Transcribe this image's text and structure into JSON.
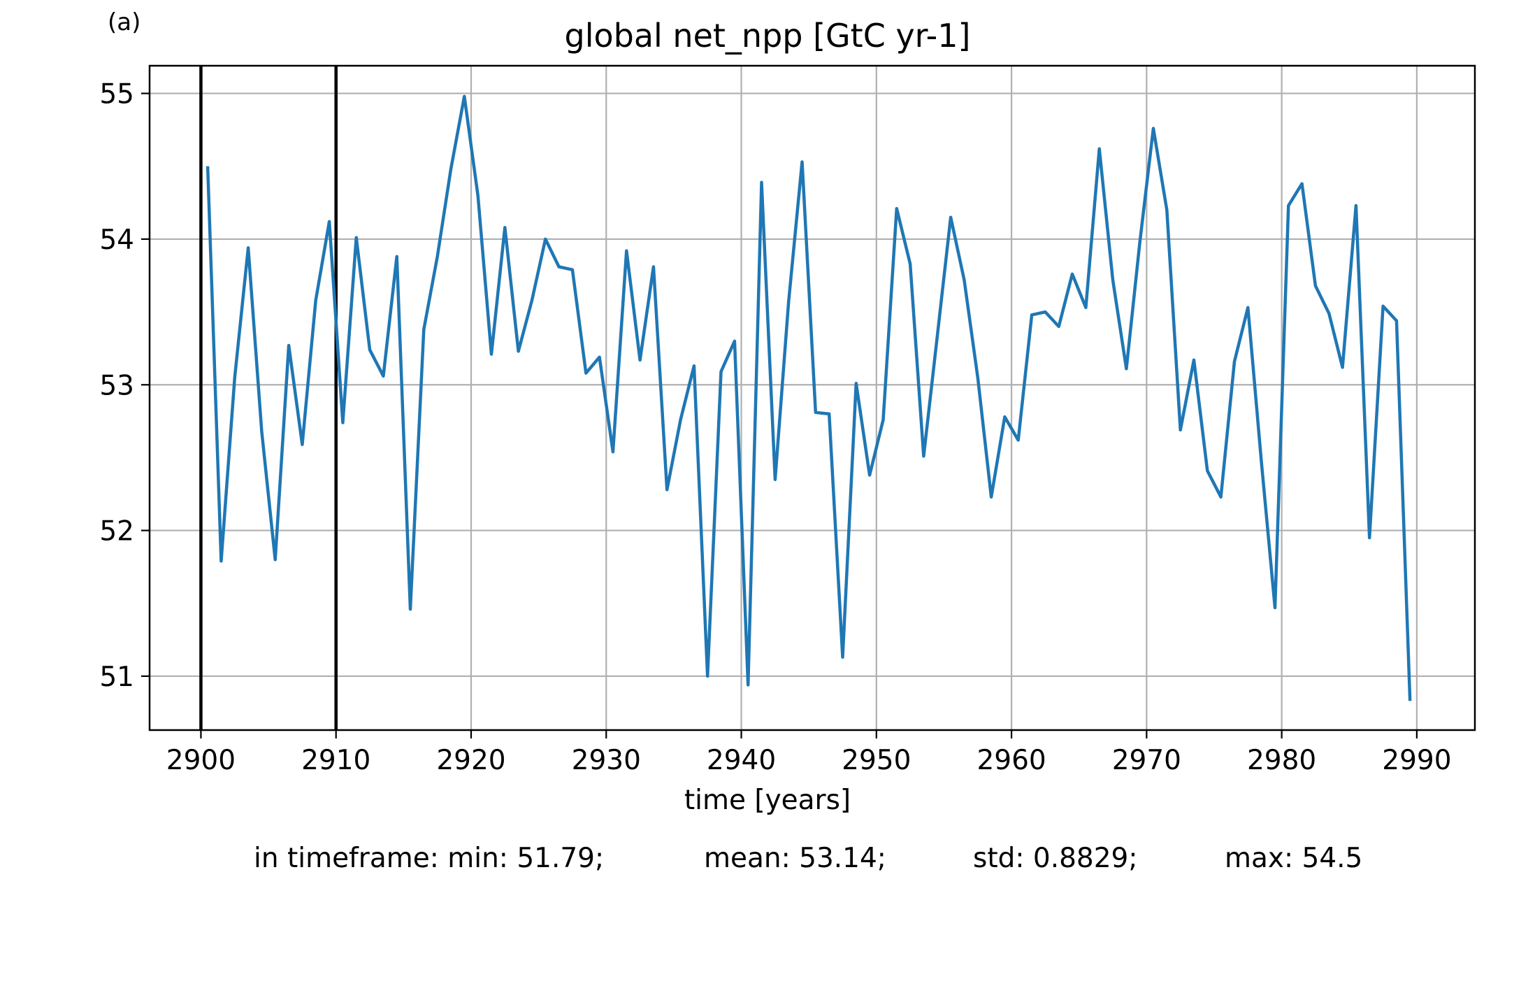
{
  "panel_label": "(a)",
  "stats": {
    "min": "in timeframe: min: 51.79;",
    "mean": "mean: 53.14;",
    "std": "std: 0.8829;",
    "max": "max: 54.5"
  },
  "colors": {
    "series": "#1f77b4",
    "grid": "#b0b0b0",
    "vline": "#000000"
  },
  "chart_data": {
    "type": "line",
    "title": "global net_npp [GtC yr-1]",
    "xlabel": "time [years]",
    "ylabel": "",
    "xlim": [
      2896.2,
      2994.3
    ],
    "ylim": [
      50.63,
      55.19
    ],
    "xticks": [
      2900,
      2910,
      2920,
      2930,
      2940,
      2950,
      2960,
      2970,
      2980,
      2990
    ],
    "yticks": [
      51,
      52,
      53,
      54,
      55
    ],
    "grid": true,
    "vertical_lines": [
      2900,
      2910
    ],
    "series": [
      {
        "x": [
          2900.5,
          2901.5,
          2902.5,
          2903.5,
          2904.5,
          2905.5,
          2906.5,
          2907.5,
          2908.5,
          2909.5,
          2910.5,
          2911.5,
          2912.5,
          2913.5,
          2914.5,
          2915.5,
          2916.5,
          2917.5,
          2918.5,
          2919.5,
          2920.5,
          2921.5,
          2922.5,
          2923.5,
          2924.5,
          2925.5,
          2926.5,
          2927.5,
          2928.5,
          2929.5,
          2930.5,
          2931.5,
          2932.5,
          2933.5,
          2934.5,
          2935.5,
          2936.5,
          2937.5,
          2938.5,
          2939.5,
          2940.5,
          2941.5,
          2942.5,
          2943.5,
          2944.5,
          2945.5,
          2946.5,
          2947.5,
          2948.5,
          2949.5,
          2950.5,
          2951.5,
          2952.5,
          2953.5,
          2954.5,
          2955.5,
          2956.5,
          2957.5,
          2958.5,
          2959.5,
          2960.5,
          2961.5,
          2962.5,
          2963.5,
          2964.5,
          2965.5,
          2966.5,
          2967.5,
          2968.5,
          2969.5,
          2970.5,
          2971.5,
          2972.5,
          2973.5,
          2974.5,
          2975.5,
          2976.5,
          2977.5,
          2978.5,
          2979.5,
          2980.5,
          2981.5,
          2982.5,
          2983.5,
          2984.5,
          2985.5,
          2986.5,
          2987.5,
          2988.5,
          2989.5
        ],
        "y": [
          54.5,
          51.79,
          53.05,
          53.94,
          52.68,
          51.8,
          53.27,
          52.59,
          53.58,
          54.12,
          52.74,
          54.01,
          53.24,
          53.06,
          53.88,
          51.46,
          53.38,
          53.88,
          54.48,
          54.98,
          54.3,
          53.21,
          54.08,
          53.23,
          53.58,
          54.0,
          53.81,
          53.79,
          53.08,
          53.19,
          52.54,
          53.92,
          53.17,
          53.81,
          52.28,
          52.76,
          53.13,
          51.0,
          53.09,
          53.3,
          50.94,
          54.39,
          52.35,
          53.57,
          54.53,
          52.81,
          52.8,
          51.13,
          53.01,
          52.38,
          52.76,
          54.21,
          53.83,
          52.51,
          53.33,
          54.15,
          53.72,
          53.05,
          52.23,
          52.78,
          52.62,
          53.48,
          53.5,
          53.4,
          53.76,
          53.53,
          54.62,
          53.72,
          53.11,
          53.98,
          54.76,
          54.2,
          52.69,
          53.17,
          52.41,
          52.23,
          53.16,
          53.53,
          52.47,
          51.47,
          54.23,
          54.38,
          53.68,
          53.49,
          53.12,
          54.23,
          51.95,
          53.54,
          53.44,
          50.83
        ]
      }
    ]
  }
}
